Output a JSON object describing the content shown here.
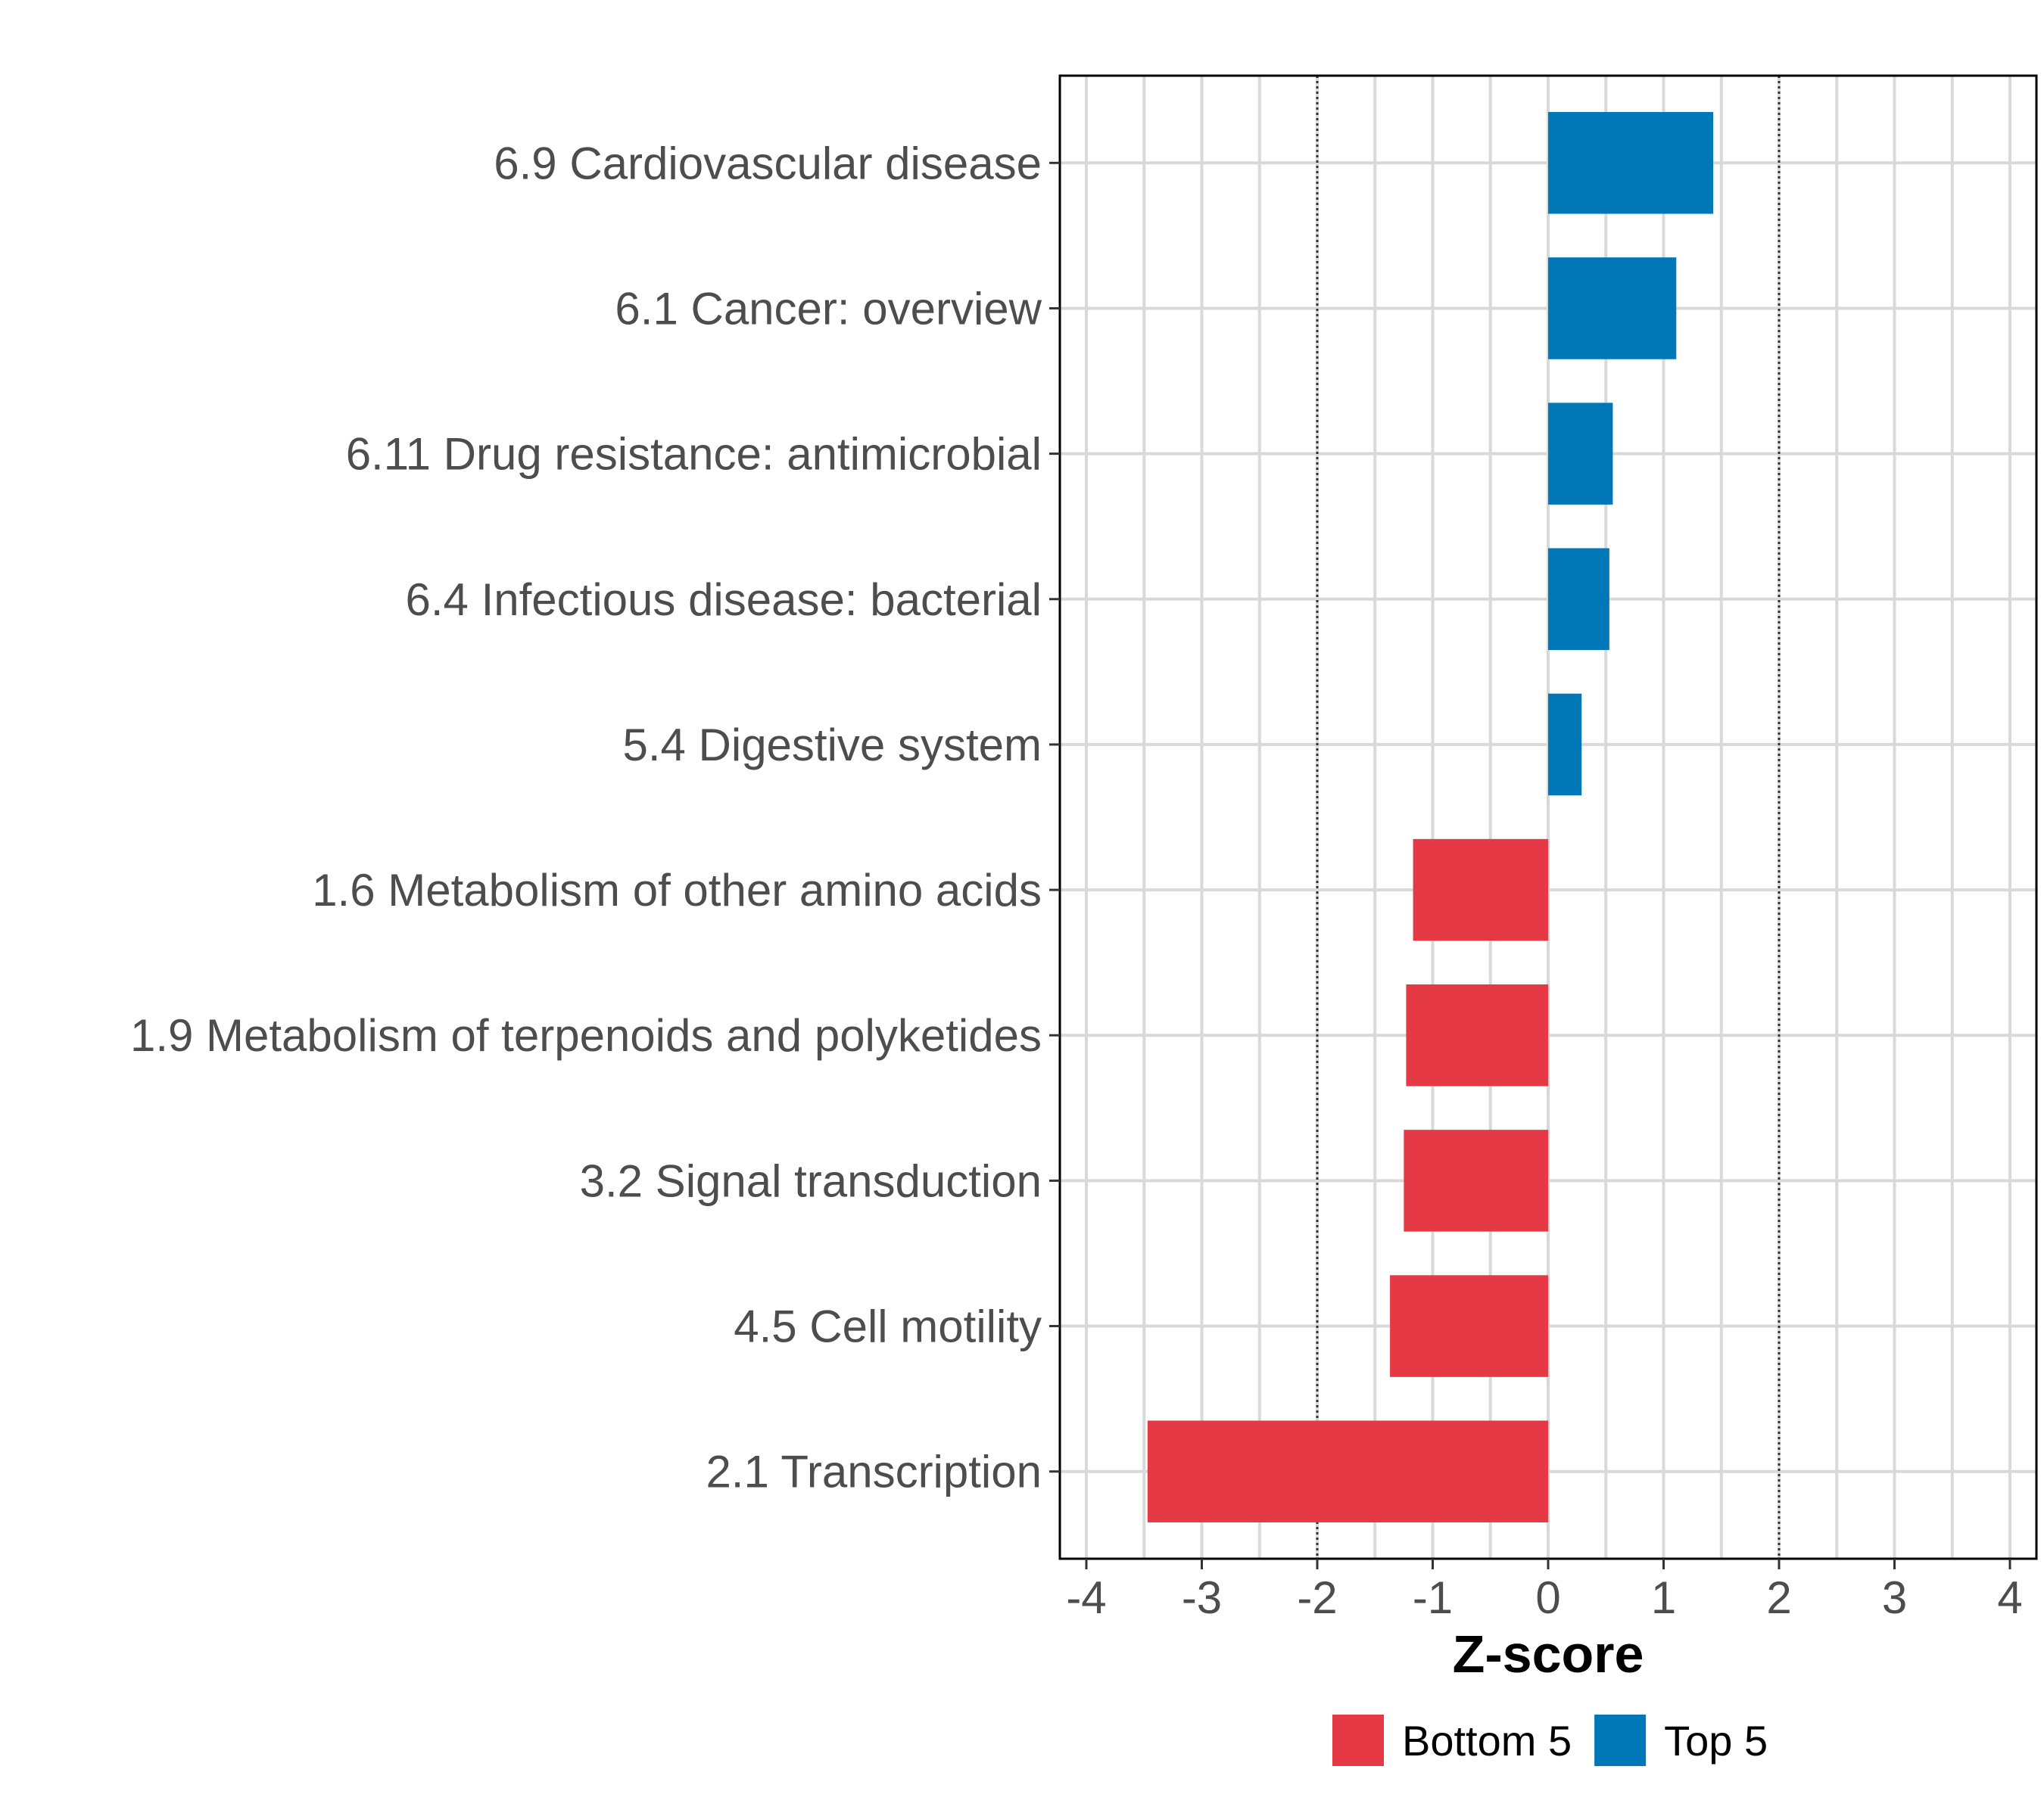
{
  "chart_data": {
    "type": "bar",
    "orientation": "horizontal",
    "title": "",
    "xlabel": "Z-score",
    "ylabel": "",
    "xlim": [
      -4,
      4
    ],
    "xticks": [
      "-4",
      "-3",
      "-2",
      "-1",
      "0",
      "1",
      "2",
      "3",
      "4"
    ],
    "reference_lines": [
      -2,
      2
    ],
    "grid": true,
    "legend_position": "bottom",
    "categories": [
      "6.9 Cardiovascular disease",
      "6.1 Cancer: overview",
      "6.11 Drug resistance: antimicrobial",
      "6.4 Infectious disease: bacterial",
      "5.4 Digestive system",
      "1.6 Metabolism of other amino acids",
      "1.9 Metabolism of terpenoids and polyketides",
      "3.2 Signal transduction",
      "4.5 Cell motility",
      "2.1 Transcription"
    ],
    "values": [
      1.43,
      1.11,
      0.56,
      0.53,
      0.29,
      -1.17,
      -1.23,
      -1.25,
      -1.37,
      -3.47
    ],
    "groups": [
      "Top 5",
      "Top 5",
      "Top 5",
      "Top 5",
      "Top 5",
      "Bottom 5",
      "Bottom 5",
      "Bottom 5",
      "Bottom 5",
      "Bottom 5"
    ],
    "legend": [
      {
        "name": "Bottom 5",
        "color": "#e63946"
      },
      {
        "name": "Top 5",
        "color": "#0077b6"
      }
    ]
  }
}
